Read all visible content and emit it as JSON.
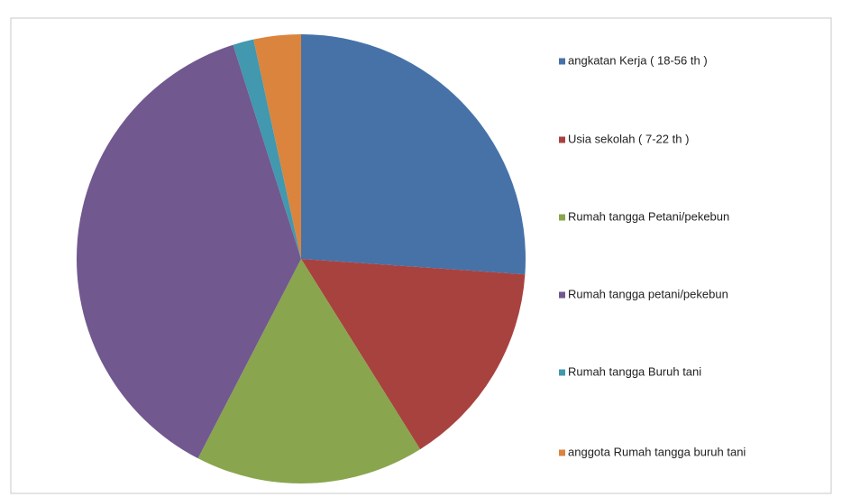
{
  "chart_data": {
    "type": "pie",
    "categories": [
      "angkatan Kerja ( 18-56 th )",
      "Usia sekolah ( 7-22 th )",
      "Rumah tangga Petani/pekebun",
      "Rumah tangga petani/pekebun",
      "Rumah tangga Buruh tani",
      "anggota Rumah tangga buruh tani"
    ],
    "values": [
      26.1,
      15,
      16.5,
      37.5,
      1.5,
      3.4
    ],
    "colors": [
      "#4672a8",
      "#a8423f",
      "#89a54e",
      "#71588f",
      "#4198af",
      "#db843d"
    ],
    "legend": "right"
  }
}
